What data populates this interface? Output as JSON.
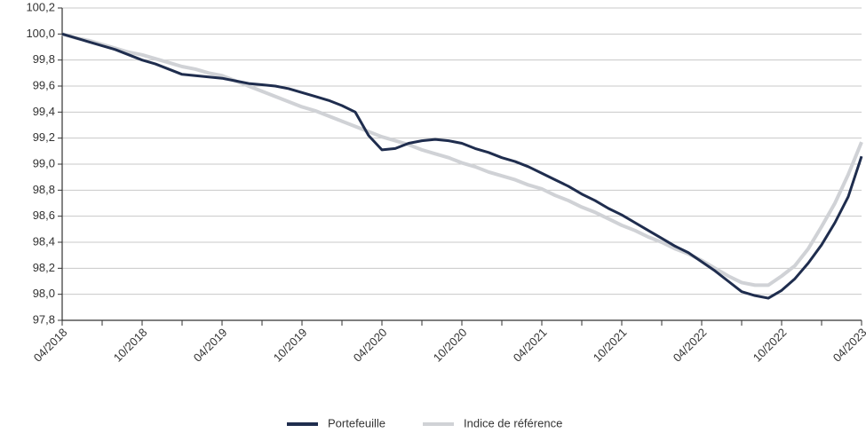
{
  "chart_data": {
    "type": "line",
    "x": [
      "04/2018",
      null,
      null,
      null,
      null,
      null,
      "10/2018",
      null,
      null,
      null,
      null,
      null,
      "04/2019",
      null,
      null,
      null,
      null,
      null,
      "10/2019",
      null,
      null,
      null,
      null,
      null,
      "04/2020",
      null,
      null,
      null,
      null,
      null,
      "10/2020",
      null,
      null,
      null,
      null,
      null,
      "04/2021",
      null,
      null,
      null,
      null,
      null,
      "10/2021",
      null,
      null,
      null,
      null,
      null,
      "04/2022",
      null,
      null,
      null,
      null,
      null,
      "10/2022",
      null,
      null,
      null,
      null,
      null,
      "04/2023"
    ],
    "series": [
      {
        "name": "Portefeuille",
        "color": "#1f2d4e",
        "values": [
          100.0,
          99.97,
          99.94,
          99.91,
          99.88,
          99.84,
          99.8,
          99.77,
          99.73,
          99.69,
          99.68,
          99.67,
          99.66,
          99.64,
          99.62,
          99.61,
          99.6,
          99.58,
          99.55,
          99.52,
          99.49,
          99.45,
          99.4,
          99.22,
          99.11,
          99.12,
          99.16,
          99.18,
          99.19,
          99.18,
          99.16,
          99.12,
          99.09,
          99.05,
          99.02,
          98.98,
          98.93,
          98.88,
          98.83,
          98.77,
          98.72,
          98.66,
          98.61,
          98.55,
          98.49,
          98.43,
          98.37,
          98.32,
          98.25,
          98.18,
          98.1,
          98.02,
          97.99,
          97.97,
          98.03,
          98.12,
          98.24,
          98.38,
          98.55,
          98.75,
          99.06
        ]
      },
      {
        "name": "Indice de référence",
        "color": "#d0d2d6",
        "values": [
          100.0,
          99.97,
          99.95,
          99.92,
          99.89,
          99.86,
          99.84,
          99.81,
          99.78,
          99.75,
          99.73,
          99.7,
          99.68,
          99.64,
          99.6,
          99.56,
          99.52,
          99.48,
          99.44,
          99.41,
          99.37,
          99.33,
          99.29,
          99.25,
          99.21,
          99.18,
          99.15,
          99.11,
          99.08,
          99.05,
          99.01,
          98.98,
          98.94,
          98.91,
          98.88,
          98.84,
          98.81,
          98.76,
          98.72,
          98.67,
          98.63,
          98.58,
          98.53,
          98.49,
          98.44,
          98.4,
          98.35,
          98.31,
          98.26,
          98.2,
          98.14,
          98.09,
          98.07,
          98.07,
          98.14,
          98.22,
          98.35,
          98.52,
          98.7,
          98.92,
          99.17
        ]
      }
    ],
    "ylim": [
      97.8,
      100.2
    ],
    "yticks": [
      {
        "value": 97.8,
        "label": "97,8"
      },
      {
        "value": 98.0,
        "label": "98,0"
      },
      {
        "value": 98.2,
        "label": "98,2"
      },
      {
        "value": 98.4,
        "label": "98,4"
      },
      {
        "value": 98.6,
        "label": "98,6"
      },
      {
        "value": 98.8,
        "label": "98,8"
      },
      {
        "value": 99.0,
        "label": "99,0"
      },
      {
        "value": 99.2,
        "label": "99,2"
      },
      {
        "value": 99.4,
        "label": "99,4"
      },
      {
        "value": 99.6,
        "label": "99,6"
      },
      {
        "value": 99.8,
        "label": "99,8"
      },
      {
        "value": 100.0,
        "label": "100,0"
      },
      {
        "value": 100.2,
        "label": "100,2"
      }
    ],
    "grid": true,
    "legend": "bottom"
  }
}
